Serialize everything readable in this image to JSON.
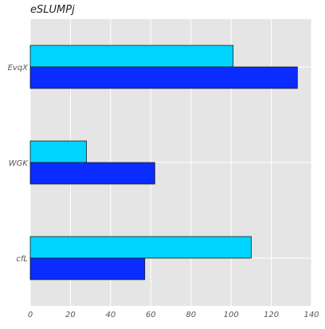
{
  "chart_data": {
    "type": "bar",
    "orientation": "horizontal",
    "title": "eSLUMPj",
    "xlabel": "",
    "ylabel": "",
    "categories": [
      "EvqX",
      "WGK",
      "cfL"
    ],
    "series": [
      {
        "values": [
          101,
          28,
          110
        ],
        "color": "#00d5ff"
      },
      {
        "values": [
          133,
          62,
          57
        ],
        "color": "#0a2cff"
      }
    ],
    "xlim": [
      0,
      140
    ],
    "xticks": [
      0,
      20,
      40,
      60,
      80,
      100,
      120,
      140
    ],
    "grid": true,
    "background_color": "#e5e5e5",
    "grid_color": "#ffffff"
  }
}
